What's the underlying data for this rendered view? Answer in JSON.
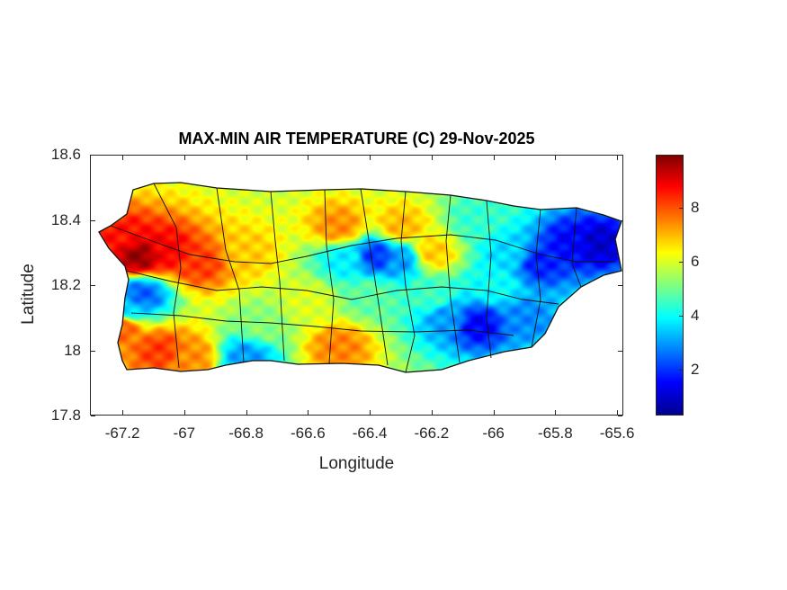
{
  "chart_data": {
    "type": "heatmap",
    "title": "MAX-MIN AIR TEMPERATURE (C) 29-Nov-2025",
    "xlabel": "Longitude",
    "ylabel": "Latitude",
    "xlim": [
      -67.305,
      -65.58
    ],
    "ylim": [
      17.8,
      18.6
    ],
    "xticks": [
      "-67.2",
      "-67",
      "-66.8",
      "-66.6",
      "-66.4",
      "-66.2",
      "-66",
      "-65.8",
      "-65.6"
    ],
    "xtick_values": [
      -67.2,
      -67,
      -66.8,
      -66.6,
      -66.4,
      -66.2,
      -66,
      -65.8,
      -65.6
    ],
    "yticks": [
      "18.6",
      "18.4",
      "18.2",
      "18",
      "17.8"
    ],
    "ytick_values": [
      18.6,
      18.4,
      18.2,
      18,
      17.8
    ],
    "colorbar": {
      "colormap": "jet",
      "clim": [
        0.3,
        9.95
      ],
      "ticks": [
        "2",
        "4",
        "6",
        "8"
      ],
      "tick_values": [
        2,
        4,
        6,
        8
      ]
    },
    "field_base_value": 5.6,
    "field_samples": [
      {
        "lon": -67.15,
        "lat": 18.29,
        "value": 9.7
      },
      {
        "lon": -67.06,
        "lat": 18.31,
        "value": 8.8
      },
      {
        "lon": -67.2,
        "lat": 18.35,
        "value": 8.6
      },
      {
        "lon": -66.95,
        "lat": 18.27,
        "value": 8.2
      },
      {
        "lon": -67.2,
        "lat": 18.07,
        "value": 7.8
      },
      {
        "lon": -67.08,
        "lat": 18.0,
        "value": 8.2
      },
      {
        "lon": -66.98,
        "lat": 17.98,
        "value": 7.4
      },
      {
        "lon": -67.14,
        "lat": 18.17,
        "value": 2.4
      },
      {
        "lon": -67.18,
        "lat": 18.13,
        "value": 3.5
      },
      {
        "lon": -66.5,
        "lat": 18.38,
        "value": 7.4
      },
      {
        "lon": -66.3,
        "lat": 18.38,
        "value": 7.0
      },
      {
        "lon": -66.8,
        "lat": 18.3,
        "value": 6.8
      },
      {
        "lon": -66.6,
        "lat": 18.15,
        "value": 6.0
      },
      {
        "lon": -66.38,
        "lat": 18.29,
        "value": 2.0
      },
      {
        "lon": -66.3,
        "lat": 18.28,
        "value": 3.0
      },
      {
        "lon": -66.48,
        "lat": 18.28,
        "value": 3.8
      },
      {
        "lon": -65.75,
        "lat": 18.33,
        "value": 1.5
      },
      {
        "lon": -65.66,
        "lat": 18.33,
        "value": 1.0
      },
      {
        "lon": -65.85,
        "lat": 18.27,
        "value": 1.8
      },
      {
        "lon": -65.9,
        "lat": 18.1,
        "value": 2.8
      },
      {
        "lon": -66.05,
        "lat": 18.08,
        "value": 1.5
      },
      {
        "lon": -66.15,
        "lat": 18.1,
        "value": 3.0
      },
      {
        "lon": -66.2,
        "lat": 18.17,
        "value": 4.5
      },
      {
        "lon": -66.0,
        "lat": 18.2,
        "value": 4.0
      },
      {
        "lon": -66.5,
        "lat": 18.01,
        "value": 7.5
      },
      {
        "lon": -66.4,
        "lat": 18.17,
        "value": 4.8
      },
      {
        "lon": -66.2,
        "lat": 18.3,
        "value": 6.8
      },
      {
        "lon": -66.05,
        "lat": 18.4,
        "value": 4.4
      },
      {
        "lon": -65.95,
        "lat": 18.3,
        "value": 3.6
      },
      {
        "lon": -66.75,
        "lat": 18.08,
        "value": 5.2
      },
      {
        "lon": -66.8,
        "lat": 17.98,
        "value": 3.0
      }
    ]
  }
}
